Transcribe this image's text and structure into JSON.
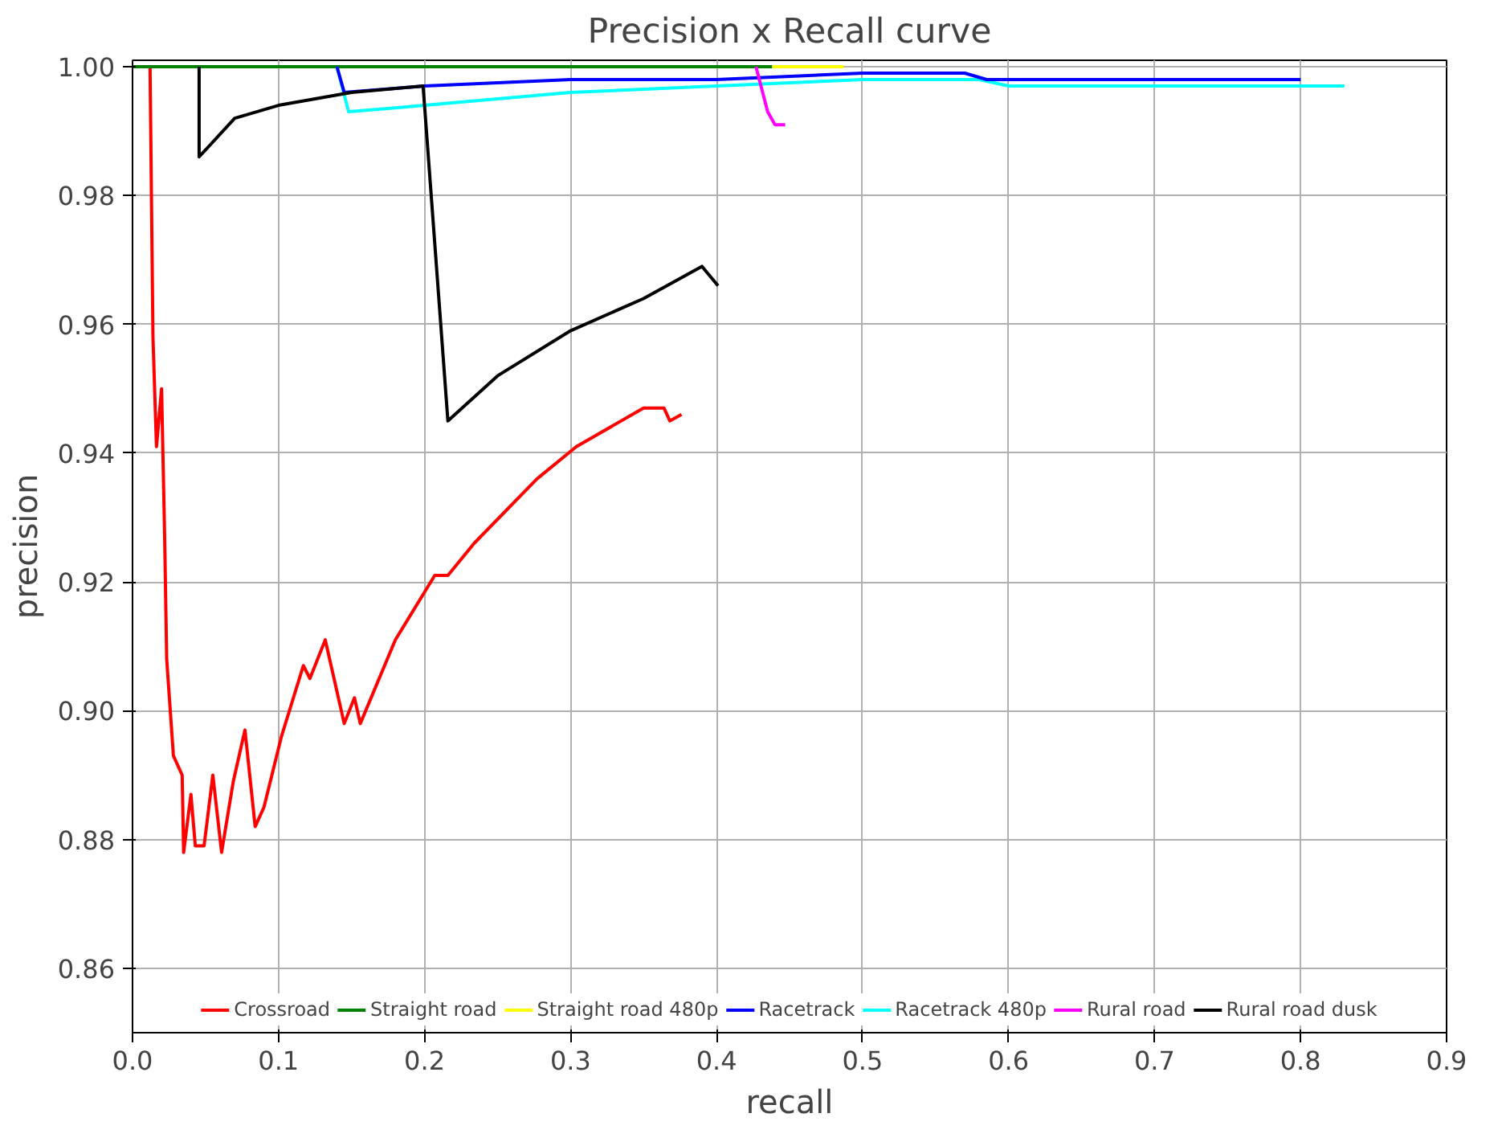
{
  "chart_data": {
    "type": "line",
    "title": "Precision x Recall curve",
    "xlabel": "recall",
    "ylabel": "precision",
    "xlim": [
      0,
      0.9
    ],
    "ylim": [
      0.85,
      1.001
    ],
    "xticks": [
      {
        "value": 0,
        "label": "0.0"
      },
      0.1,
      0.2,
      0.3,
      0.4,
      0.5,
      0.6,
      0.7,
      0.8,
      0.9
    ],
    "yticks": [
      0.86,
      0.88,
      {
        "value": 0.9,
        "label": "0.90"
      },
      0.92,
      0.94,
      0.96,
      0.98,
      {
        "value": 1.0,
        "label": "1.00"
      }
    ],
    "grid": true,
    "legend": "bottom",
    "line_style": "solid",
    "marker": "none",
    "series": [
      {
        "name": "Crossroad",
        "color": "#ff0000",
        "x": [
          0.012,
          0.014,
          0.0164,
          0.0199,
          0.022,
          0.0234,
          0.028,
          0.034,
          0.035,
          0.04,
          0.043,
          0.049,
          0.055,
          0.061,
          0.069,
          0.077,
          0.084,
          0.09,
          0.102,
          0.117,
          0.1215,
          0.132,
          0.145,
          0.152,
          0.156,
          0.18,
          0.207,
          0.216,
          0.234,
          0.277,
          0.304,
          0.35,
          0.364,
          0.368,
          0.376
        ],
        "values": [
          1.0,
          0.958,
          0.941,
          0.95,
          0.927,
          0.908,
          0.893,
          0.89,
          0.878,
          0.887,
          0.879,
          0.879,
          0.89,
          0.878,
          0.889,
          0.897,
          0.882,
          0.885,
          0.896,
          0.907,
          0.905,
          0.911,
          0.898,
          0.902,
          0.898,
          0.911,
          0.921,
          0.921,
          0.926,
          0.936,
          0.941,
          0.947,
          0.947,
          0.945,
          0.946
        ]
      },
      {
        "name": "Straight road 480p",
        "color": "#ffff00",
        "x": [
          0.438,
          0.487
        ],
        "values": [
          1.0,
          1.0
        ]
      },
      {
        "name": "Straight road",
        "color": "#008000",
        "x": [
          0,
          0.438
        ],
        "values": [
          1.0,
          1.0
        ]
      },
      {
        "name": "Racetrack 480p",
        "color": "#00ffff",
        "x": [
          0.14,
          0.148,
          0.2,
          0.3,
          0.4,
          0.5,
          0.58,
          0.6,
          0.83
        ],
        "values": [
          1.0,
          0.993,
          0.994,
          0.996,
          0.997,
          0.998,
          0.998,
          0.997,
          0.997
        ]
      },
      {
        "name": "Racetrack",
        "color": "#0000ff",
        "x": [
          0.14,
          0.145,
          0.2,
          0.3,
          0.4,
          0.5,
          0.55,
          0.57,
          0.585,
          0.8
        ],
        "values": [
          1.0,
          0.996,
          0.997,
          0.998,
          0.998,
          0.999,
          0.999,
          0.999,
          0.998,
          0.998
        ]
      },
      {
        "name": "Rural road",
        "color": "#ff00ff",
        "x": [
          0.427,
          0.435,
          0.44,
          0.447
        ],
        "values": [
          1.0,
          0.993,
          0.991,
          0.991
        ]
      },
      {
        "name": "Rural road dusk",
        "color": "#000000",
        "x": [
          0.0456,
          0.0456,
          0.07,
          0.1,
          0.15,
          0.199,
          0.2,
          0.216,
          0.25,
          0.3,
          0.35,
          0.39,
          0.401
        ],
        "values": [
          1.0,
          0.986,
          0.992,
          0.994,
          0.996,
          0.997,
          0.994,
          0.945,
          0.952,
          0.959,
          0.964,
          0.969,
          0.966
        ]
      }
    ]
  }
}
